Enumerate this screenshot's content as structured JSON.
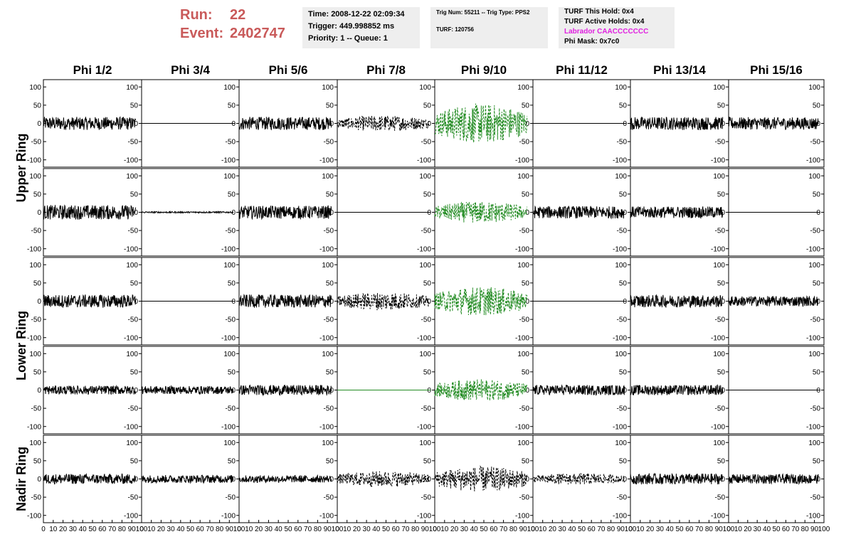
{
  "header": {
    "run_label": "Run:",
    "run_value": "22",
    "event_label": "Event:",
    "event_value": "2402747",
    "time_line": "Time: 2008-12-22 02:09:34",
    "trigger_line": "Trigger: 449.998852 ms",
    "priority_line": "Priority: 1 -- Queue: 1",
    "trig_line": "Trig Num: 55211 -- Trig Type: PPS2",
    "turf_line": "TURF: 120756",
    "turf_hold_line": "TURF This Hold: 0x4",
    "turf_active_line": "TURF Active Holds: 0x4",
    "labrador_line": "Labrador CAACCCCCCC",
    "phi_mask_line": "Phi Mask: 0x7c0"
  },
  "colors": {
    "run_text": "#c95a5a",
    "labrador_text": "#e020e0",
    "trace_black": "#000000",
    "trace_green": "#228b22",
    "info_bg": "#eeeeee"
  },
  "chart_data": {
    "type": "line",
    "columns": [
      "Phi 1/2",
      "Phi 3/4",
      "Phi 5/6",
      "Phi 7/8",
      "Phi 9/10",
      "Phi 11/12",
      "Phi 13/14",
      "Phi 15/16"
    ],
    "rows": [
      "Upper Ring",
      "Upper Ring",
      "Lower Ring",
      "Lower Ring",
      "Nadir Ring"
    ],
    "row_labels": [
      "Upper Ring",
      "Lower Ring",
      "Nadir Ring"
    ],
    "xlim": [
      0,
      100
    ],
    "ylim": [
      -120,
      120
    ],
    "x_ticks": [
      "0",
      "10",
      "20",
      "30",
      "40",
      "50",
      "60",
      "70",
      "80",
      "90",
      "100"
    ],
    "y_ticks": [
      "100",
      "50",
      "0",
      "-50",
      "-100"
    ],
    "panels": [
      [
        {
          "style": "solid",
          "color": "black",
          "amplitude": 18
        },
        {
          "style": "flat",
          "color": "black",
          "amplitude": 0
        },
        {
          "style": "solid",
          "color": "black",
          "amplitude": 18
        },
        {
          "style": "dashed",
          "color": "black",
          "amplitude": 22
        },
        {
          "style": "dashed",
          "color": "green",
          "amplitude": 55
        },
        {
          "style": "flat",
          "color": "black",
          "amplitude": 0
        },
        {
          "style": "solid",
          "color": "black",
          "amplitude": 18
        },
        {
          "style": "solid",
          "color": "black",
          "amplitude": 17
        }
      ],
      [
        {
          "style": "solid",
          "color": "black",
          "amplitude": 20
        },
        {
          "style": "solid",
          "color": "black",
          "amplitude": 2
        },
        {
          "style": "solid",
          "color": "black",
          "amplitude": 18
        },
        {
          "style": "flat",
          "color": "black",
          "amplitude": 0
        },
        {
          "style": "dashed",
          "color": "green",
          "amplitude": 30
        },
        {
          "style": "solid",
          "color": "black",
          "amplitude": 17
        },
        {
          "style": "solid",
          "color": "black",
          "amplitude": 16
        },
        {
          "style": "flat",
          "color": "black",
          "amplitude": 0
        }
      ],
      [
        {
          "style": "solid",
          "color": "black",
          "amplitude": 18
        },
        {
          "style": "flat",
          "color": "black",
          "amplitude": 0
        },
        {
          "style": "solid",
          "color": "black",
          "amplitude": 18
        },
        {
          "style": "dashed",
          "color": "black",
          "amplitude": 25
        },
        {
          "style": "dashed",
          "color": "green",
          "amplitude": 40
        },
        {
          "style": "flat",
          "color": "black",
          "amplitude": 0
        },
        {
          "style": "solid",
          "color": "black",
          "amplitude": 17
        },
        {
          "style": "solid",
          "color": "black",
          "amplitude": 14
        }
      ],
      [
        {
          "style": "solid",
          "color": "black",
          "amplitude": 12
        },
        {
          "style": "solid",
          "color": "black",
          "amplitude": 11
        },
        {
          "style": "solid",
          "color": "black",
          "amplitude": 14
        },
        {
          "style": "flat",
          "color": "green",
          "amplitude": 0
        },
        {
          "style": "dashed",
          "color": "green",
          "amplitude": 30
        },
        {
          "style": "solid",
          "color": "black",
          "amplitude": 14
        },
        {
          "style": "solid",
          "color": "black",
          "amplitude": 14
        },
        {
          "style": "flat",
          "color": "black",
          "amplitude": 0
        }
      ],
      [
        {
          "style": "solid",
          "color": "black",
          "amplitude": 14
        },
        {
          "style": "solid",
          "color": "black",
          "amplitude": 11
        },
        {
          "style": "solid",
          "color": "black",
          "amplitude": 10
        },
        {
          "style": "dashed",
          "color": "black",
          "amplitude": 22
        },
        {
          "style": "dashed",
          "color": "black",
          "amplitude": 35
        },
        {
          "style": "dashed",
          "color": "black",
          "amplitude": 16
        },
        {
          "style": "solid",
          "color": "black",
          "amplitude": 15
        },
        {
          "style": "solid",
          "color": "black",
          "amplitude": 13
        }
      ]
    ]
  }
}
